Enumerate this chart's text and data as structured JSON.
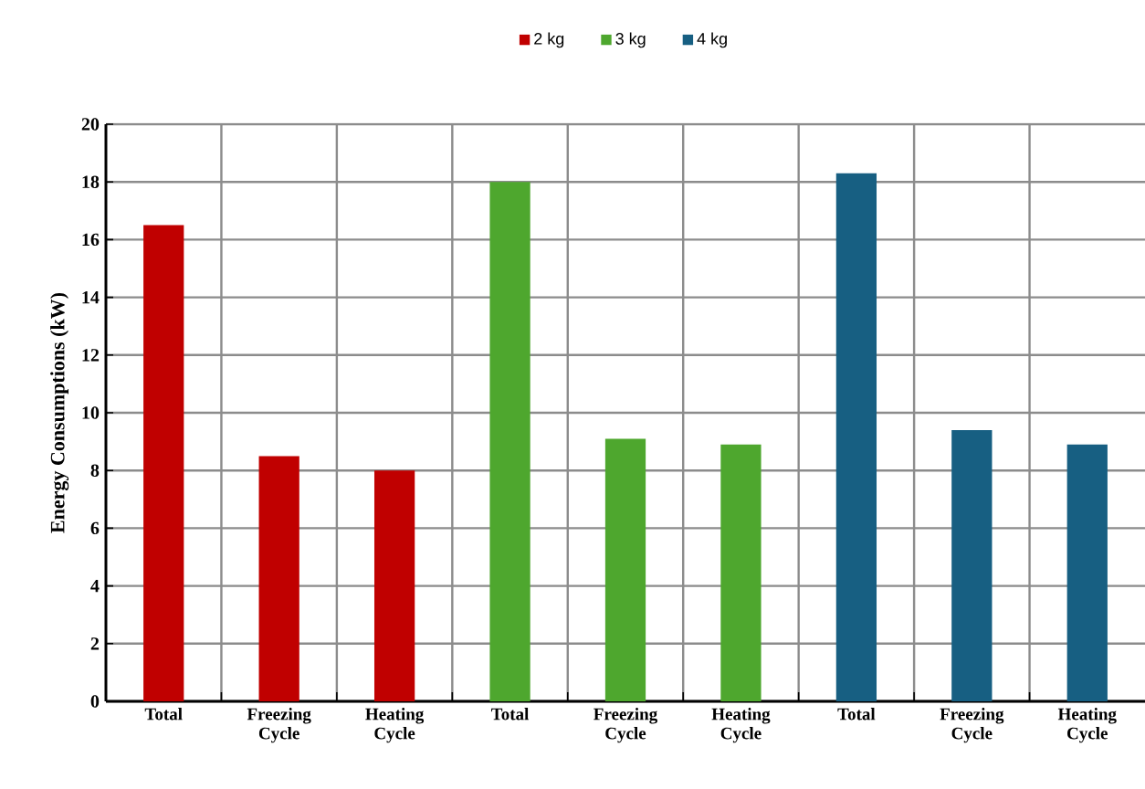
{
  "chart_data": {
    "type": "bar",
    "ylabel": "Energy Consumptions (kW)",
    "categories": [
      "Total",
      "Freezing Cycle",
      "Heating Cycle",
      "Total",
      "Freezing Cycle",
      "Heating Cycle",
      "Total",
      "Freezing Cycle",
      "Heating Cycle"
    ],
    "series": [
      {
        "name": "2 kg",
        "color": "#c00000",
        "values": [
          16.5,
          8.5,
          8.0,
          null,
          null,
          null,
          null,
          null,
          null
        ]
      },
      {
        "name": "3 kg",
        "color": "#4ea72e",
        "values": [
          null,
          null,
          null,
          18.0,
          9.1,
          8.9,
          null,
          null,
          null
        ]
      },
      {
        "name": "4 kg",
        "color": "#175f82",
        "values": [
          null,
          null,
          null,
          null,
          null,
          null,
          18.3,
          9.4,
          8.9
        ]
      }
    ],
    "ylim": [
      0,
      20
    ],
    "yticks": [
      0,
      2,
      4,
      6,
      8,
      10,
      12,
      14,
      16,
      18,
      20
    ],
    "grid": true,
    "legend": "top"
  }
}
